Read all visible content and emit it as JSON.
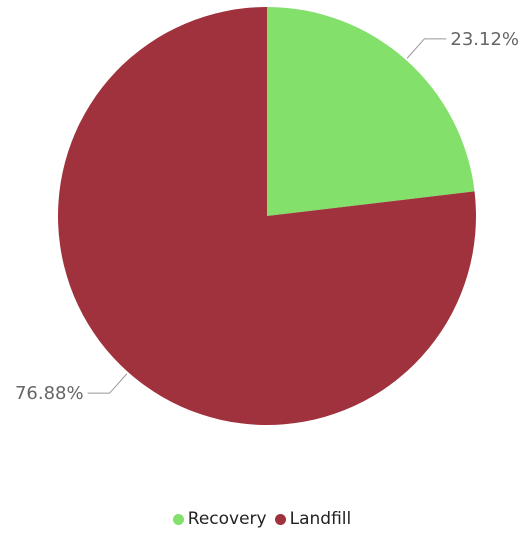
{
  "chart_data": {
    "type": "pie",
    "title": "",
    "categories": [
      "Recovery",
      "Landfill"
    ],
    "values": [
      23.12,
      76.88
    ],
    "labels": [
      "23.12%",
      "76.88%"
    ],
    "colors": [
      "#82e06b",
      "#a0323e"
    ],
    "start_angle_deg": 0,
    "direction": "clockwise",
    "legend_position": "bottom"
  }
}
